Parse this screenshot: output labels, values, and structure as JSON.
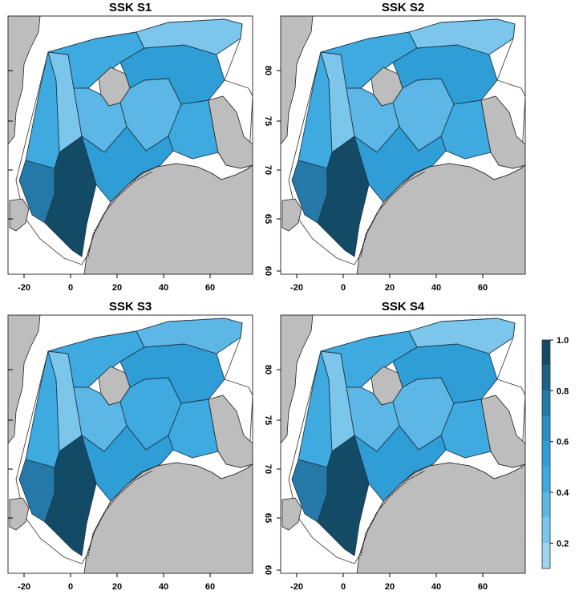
{
  "panels": [
    {
      "title": "SSK S1",
      "values": [
        0.42,
        0.3,
        0.75,
        0.95,
        0.45,
        0.35,
        0.38,
        0.52,
        0.45,
        0.3,
        0.55,
        0.25
      ]
    },
    {
      "title": "SSK S2",
      "values": [
        0.4,
        0.28,
        0.72,
        0.95,
        0.45,
        0.35,
        0.38,
        0.52,
        0.45,
        0.3,
        0.55,
        0.25
      ]
    },
    {
      "title": "SSK S3",
      "values": [
        0.42,
        0.3,
        0.75,
        0.95,
        0.48,
        0.38,
        0.4,
        0.52,
        0.45,
        0.32,
        0.55,
        0.25
      ]
    },
    {
      "title": "SSK S4",
      "values": [
        0.4,
        0.28,
        0.72,
        0.95,
        0.45,
        0.35,
        0.38,
        0.52,
        0.45,
        0.3,
        0.55,
        0.25
      ]
    }
  ],
  "x_ticks": [
    "-20",
    "0",
    "20",
    "40",
    "60"
  ],
  "y_ticks": [
    "60",
    "65",
    "70",
    "75",
    "80"
  ],
  "colorbar": {
    "ticks": [
      "0.2",
      "0.4",
      "0.6",
      "0.8",
      "1.0"
    ],
    "colors": [
      "#9dd4f0",
      "#7cc6ec",
      "#5db7e6",
      "#3eaae0",
      "#2f9ed6",
      "#2a8fc3",
      "#2479a8",
      "#1c6184",
      "#134a66"
    ]
  },
  "colors": {
    "land": "#bdbdbd",
    "border": "#1c3b50",
    "background": "#ffffff"
  }
}
